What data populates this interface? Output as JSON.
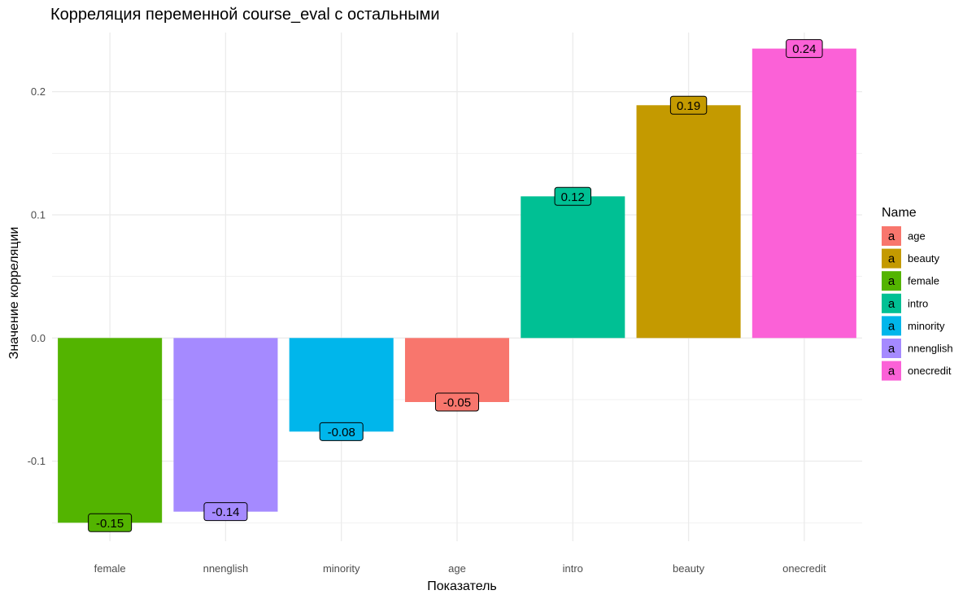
{
  "chart_data": {
    "type": "bar",
    "title": "Корреляция переменной course_eval с остальными",
    "xlabel": "Показатель",
    "ylabel": "Значение корреляции",
    "categories": [
      "female",
      "nnenglish",
      "minority",
      "age",
      "intro",
      "beauty",
      "onecredit"
    ],
    "values": [
      -0.15,
      -0.141,
      -0.076,
      -0.052,
      0.115,
      0.189,
      0.235
    ],
    "data_labels": [
      "-0.15",
      "-0.14",
      "-0.08",
      "-0.05",
      "0.12",
      "0.19",
      "0.24"
    ],
    "ylim": [
      -0.165,
      0.248
    ],
    "yticks": [
      -0.1,
      0.0,
      0.1,
      0.2
    ],
    "ytick_labels": [
      "-0.1",
      "0.0",
      "0.1",
      "0.2"
    ],
    "grid": true,
    "legend": {
      "title": "Name",
      "placement": "right",
      "key_glyph": "a",
      "entries": [
        "age",
        "beauty",
        "female",
        "intro",
        "minority",
        "nnenglish",
        "onecredit"
      ]
    },
    "colors": {
      "age": "#F8766D",
      "beauty": "#C49A00",
      "female": "#53B400",
      "intro": "#00C094",
      "minority": "#00B6EB",
      "nnenglish": "#A58AFF",
      "onecredit": "#FB61D7"
    }
  }
}
